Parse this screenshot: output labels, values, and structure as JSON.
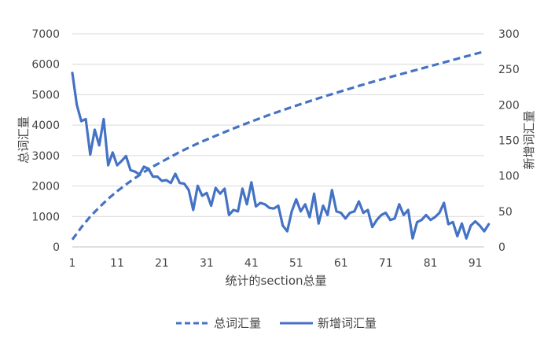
{
  "chart_data": {
    "type": "line",
    "xlabel": "统计的section总量",
    "ylabel_left": "总词汇量",
    "ylabel_right": "新增词汇量",
    "ylim_left": [
      0,
      7000
    ],
    "ylim_right": [
      0,
      300
    ],
    "xlim": [
      1,
      93
    ],
    "x_ticks": [
      1,
      11,
      21,
      31,
      41,
      51,
      61,
      71,
      81,
      91
    ],
    "x_tick_labels": [
      "1",
      "11",
      "21",
      "31",
      "41",
      "51",
      "61",
      "71",
      "81",
      "91"
    ],
    "y_ticks_left": [
      0,
      1000,
      2000,
      3000,
      4000,
      5000,
      6000,
      7000
    ],
    "y_tick_labels_left": [
      "0",
      "1000",
      "2000",
      "3000",
      "4000",
      "5000",
      "6000",
      "7000"
    ],
    "y_ticks_right": [
      0,
      50,
      100,
      150,
      200,
      250,
      300
    ],
    "y_tick_labels_right": [
      "0",
      "50",
      "100",
      "150",
      "200",
      "250",
      "300"
    ],
    "grid": true,
    "legend_position": "bottom",
    "series": [
      {
        "name": "总词汇量",
        "axis": "left",
        "style": "dashed",
        "color": "#4472C4",
        "x": [
          1,
          3,
          5,
          7,
          9,
          11,
          13,
          15,
          17,
          19,
          21,
          25,
          29,
          33,
          37,
          41,
          45,
          49,
          53,
          57,
          61,
          65,
          69,
          73,
          77,
          81,
          85,
          89,
          93
        ],
        "values": [
          240,
          640,
          1000,
          1300,
          1580,
          1830,
          2050,
          2260,
          2460,
          2640,
          2800,
          3120,
          3400,
          3650,
          3890,
          4120,
          4340,
          4540,
          4740,
          4930,
          5110,
          5290,
          5460,
          5620,
          5780,
          5940,
          6100,
          6260,
          6420
        ]
      },
      {
        "name": "新增词汇量",
        "axis": "right",
        "style": "solid",
        "color": "#4472C4",
        "values": [
          245,
          200,
          177,
          180,
          130,
          165,
          143,
          180,
          115,
          133,
          115,
          121,
          128,
          108,
          106,
          102,
          113,
          110,
          99,
          99,
          93,
          94,
          90,
          103,
          90,
          89,
          80,
          52,
          86,
          72,
          76,
          58,
          83,
          75,
          82,
          45,
          52,
          50,
          82,
          60,
          91,
          57,
          62,
          60,
          55,
          54,
          58,
          30,
          22,
          50,
          67,
          50,
          60,
          42,
          75,
          33,
          58,
          45,
          80,
          50,
          48,
          40,
          48,
          50,
          64,
          48,
          52,
          28,
          38,
          45,
          48,
          38,
          40,
          60,
          45,
          52,
          12,
          35,
          38,
          45,
          38,
          42,
          48,
          62,
          32,
          35,
          15,
          33,
          12,
          30,
          36,
          30,
          22,
          32
        ]
      }
    ]
  }
}
